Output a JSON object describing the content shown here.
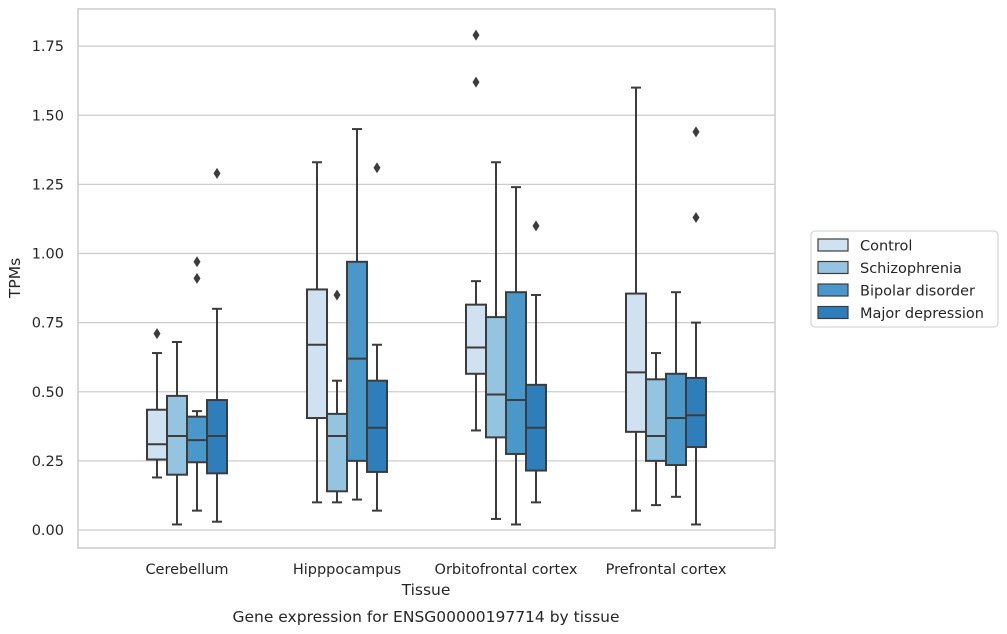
{
  "chart_data": {
    "type": "box",
    "title": "Gene expression for ENSG00000197714 by tissue",
    "xlabel": "Tissue",
    "ylabel": "TPMs",
    "ylim": [
      -0.065,
      1.88
    ],
    "yticks": [
      "0.00",
      "0.25",
      "0.50",
      "0.75",
      "1.00",
      "1.25",
      "1.50",
      "1.75"
    ],
    "ytick_values": [
      0,
      0.25,
      0.5,
      0.75,
      1.0,
      1.25,
      1.5,
      1.75
    ],
    "grid": "horizontal",
    "legend_position": "right",
    "categories": [
      "Cerebellum",
      "Hipppocampus",
      "Orbitofrontal cortex",
      "Prefrontal cortex"
    ],
    "series": [
      {
        "name": "Control",
        "color": "#d0e1f2",
        "boxes": [
          {
            "whisker_low": 0.19,
            "q1": 0.255,
            "median": 0.31,
            "q3": 0.435,
            "whisker_high": 0.64,
            "outliers": [
              0.71
            ]
          },
          {
            "whisker_low": 0.1,
            "q1": 0.405,
            "median": 0.67,
            "q3": 0.87,
            "whisker_high": 1.33,
            "outliers": []
          },
          {
            "whisker_low": 0.36,
            "q1": 0.565,
            "median": 0.66,
            "q3": 0.815,
            "whisker_high": 0.9,
            "outliers": [
              1.62,
              1.79
            ]
          },
          {
            "whisker_low": 0.07,
            "q1": 0.355,
            "median": 0.57,
            "q3": 0.855,
            "whisker_high": 1.6,
            "outliers": []
          }
        ]
      },
      {
        "name": "Schizophrenia",
        "color": "#94c4df",
        "boxes": [
          {
            "whisker_low": 0.02,
            "q1": 0.2,
            "median": 0.34,
            "q3": 0.485,
            "whisker_high": 0.68,
            "outliers": []
          },
          {
            "whisker_low": 0.1,
            "q1": 0.14,
            "median": 0.34,
            "q3": 0.42,
            "whisker_high": 0.54,
            "outliers": [
              0.85
            ]
          },
          {
            "whisker_low": 0.04,
            "q1": 0.335,
            "median": 0.49,
            "q3": 0.77,
            "whisker_high": 1.33,
            "outliers": []
          },
          {
            "whisker_low": 0.09,
            "q1": 0.25,
            "median": 0.34,
            "q3": 0.545,
            "whisker_high": 0.64,
            "outliers": []
          }
        ]
      },
      {
        "name": "Bipolar disorder",
        "color": "#4a98c9",
        "boxes": [
          {
            "whisker_low": 0.07,
            "q1": 0.245,
            "median": 0.325,
            "q3": 0.41,
            "whisker_high": 0.43,
            "outliers": [
              0.91,
              0.97
            ]
          },
          {
            "whisker_low": 0.11,
            "q1": 0.25,
            "median": 0.62,
            "q3": 0.97,
            "whisker_high": 1.45,
            "outliers": []
          },
          {
            "whisker_low": 0.02,
            "q1": 0.275,
            "median": 0.47,
            "q3": 0.86,
            "whisker_high": 1.24,
            "outliers": []
          },
          {
            "whisker_low": 0.12,
            "q1": 0.235,
            "median": 0.405,
            "q3": 0.565,
            "whisker_high": 0.86,
            "outliers": []
          }
        ]
      },
      {
        "name": "Major depression",
        "color": "#2e7ebc",
        "boxes": [
          {
            "whisker_low": 0.03,
            "q1": 0.205,
            "median": 0.34,
            "q3": 0.47,
            "whisker_high": 0.8,
            "outliers": [
              1.29
            ]
          },
          {
            "whisker_low": 0.07,
            "q1": 0.21,
            "median": 0.37,
            "q3": 0.54,
            "whisker_high": 0.67,
            "outliers": [
              1.31
            ]
          },
          {
            "whisker_low": 0.1,
            "q1": 0.215,
            "median": 0.37,
            "q3": 0.525,
            "whisker_high": 0.85,
            "outliers": [
              1.1
            ]
          },
          {
            "whisker_low": 0.02,
            "q1": 0.3,
            "median": 0.415,
            "q3": 0.55,
            "whisker_high": 0.75,
            "outliers": [
              1.13,
              1.44
            ]
          }
        ]
      }
    ]
  }
}
